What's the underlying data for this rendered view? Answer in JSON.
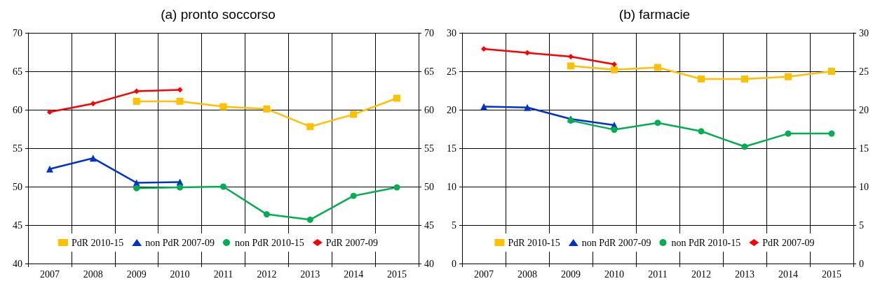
{
  "chart_data": [
    {
      "type": "line",
      "title": "(a) pronto soccorso",
      "categories": [
        "2007",
        "2008",
        "2009",
        "2010",
        "2011",
        "2012",
        "2013",
        "2014",
        "2015"
      ],
      "series": [
        {
          "name": "PdR 2010-15",
          "color": "#ffc000",
          "marker": "square",
          "values": [
            null,
            null,
            61.1,
            61.1,
            60.4,
            60.1,
            57.8,
            59.4,
            61.5
          ]
        },
        {
          "name": "non PdR 2007-09",
          "color": "#0033cc",
          "marker": "triangle",
          "values": [
            52.3,
            53.7,
            50.5,
            50.6,
            null,
            null,
            null,
            null,
            null
          ]
        },
        {
          "name": "non PdR 2010-15",
          "color": "#00b050",
          "marker": "circle",
          "values": [
            null,
            null,
            49.8,
            49.9,
            50.0,
            46.4,
            45.7,
            48.8,
            49.9
          ]
        },
        {
          "name": "PdR 2007-09",
          "color": "#ff0000",
          "marker": "diamond",
          "values": [
            59.7,
            60.8,
            62.4,
            62.6,
            null,
            null,
            null,
            null,
            null
          ]
        }
      ],
      "ylim": [
        40,
        70
      ],
      "yticks": [
        40,
        45,
        50,
        55,
        60,
        65,
        70
      ],
      "y2lim": [
        40,
        70
      ],
      "y2ticks": [
        40,
        45,
        50,
        55,
        60,
        65,
        70
      ],
      "grid": true,
      "legend": "bottom",
      "line_style": "solid"
    },
    {
      "type": "line",
      "title": "(b) farmacie",
      "categories": [
        "2007",
        "2008",
        "2009",
        "2010",
        "2011",
        "2012",
        "2013",
        "2014",
        "2015"
      ],
      "series": [
        {
          "name": "PdR 2010-15",
          "color": "#ffc000",
          "marker": "square",
          "values": [
            null,
            null,
            25.7,
            25.2,
            25.5,
            24.0,
            24.0,
            24.3,
            25.0
          ]
        },
        {
          "name": "non PdR 2007-09",
          "color": "#0033cc",
          "marker": "triangle",
          "values": [
            20.4,
            20.3,
            18.8,
            18.0,
            null,
            null,
            null,
            null,
            null
          ]
        },
        {
          "name": "non PdR 2010-15",
          "color": "#00b050",
          "marker": "circle",
          "values": [
            null,
            null,
            18.6,
            17.4,
            18.3,
            17.2,
            15.2,
            16.9,
            16.9
          ]
        },
        {
          "name": "PdR 2007-09",
          "color": "#ff0000",
          "marker": "diamond",
          "values": [
            27.9,
            27.4,
            26.9,
            25.9,
            null,
            null,
            null,
            null,
            null
          ]
        }
      ],
      "ylim": [
        0,
        30
      ],
      "yticks": [
        0,
        5,
        10,
        15,
        20,
        25,
        30
      ],
      "y2lim": [
        0,
        30
      ],
      "y2ticks": [
        0,
        5,
        10,
        15,
        20,
        25,
        30
      ],
      "grid": true,
      "legend": "bottom",
      "line_style": "solid"
    }
  ]
}
